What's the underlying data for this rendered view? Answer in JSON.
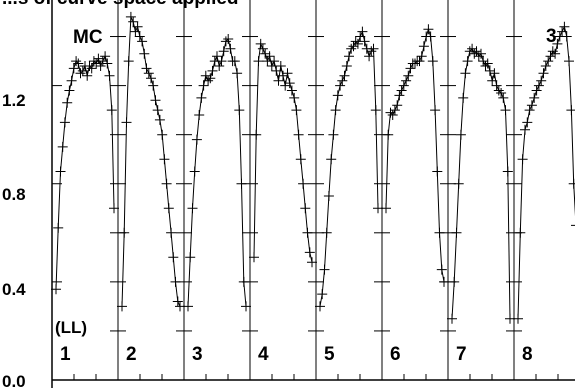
{
  "header_text": "...s of curve space applied",
  "chart_data": {
    "type": "line",
    "panel_label": "MC",
    "corner_label": "3",
    "mode_label": "(LL)",
    "ylim": [
      0.0,
      1.5
    ],
    "y_ticks": [
      {
        "value": 1.2,
        "label": "1.2"
      },
      {
        "value": 0.8,
        "label": "0.8"
      },
      {
        "value": 0.4,
        "label": "0.4"
      },
      {
        "value": 0.0,
        "label": "0.0"
      }
    ],
    "grid": false,
    "marker": "plus",
    "panels": [
      {
        "label": "1",
        "values": [
          0.37,
          0.62,
          0.85,
          0.95,
          1.05,
          1.13,
          1.18,
          1.22,
          1.27,
          1.3,
          1.29,
          1.25,
          1.26,
          1.28,
          1.24,
          1.28,
          1.27,
          1.3,
          1.29,
          1.31,
          1.28,
          1.3,
          1.32,
          1.29,
          1.24,
          1.1,
          0.7
        ]
      },
      {
        "label": "2",
        "values": [
          0.3,
          0.6,
          1.05,
          1.3,
          1.48,
          1.46,
          1.42,
          1.44,
          1.4,
          1.38,
          1.33,
          1.27,
          1.25,
          1.23,
          1.2,
          1.14,
          1.1,
          1.06,
          1.0,
          0.9,
          0.8,
          0.7,
          0.6,
          0.5,
          0.4,
          0.32,
          0.3
        ]
      },
      {
        "label": "3",
        "values": [
          0.3,
          0.5,
          0.7,
          0.85,
          0.98,
          1.08,
          1.15,
          1.2,
          1.24,
          1.22,
          1.23,
          1.26,
          1.3,
          1.32,
          1.28,
          1.3,
          1.34,
          1.38,
          1.39,
          1.35,
          1.3,
          1.3,
          1.25,
          1.1,
          0.8,
          0.4,
          0.3
        ]
      },
      {
        "label": "4",
        "values": [
          0.5,
          1.0,
          1.3,
          1.37,
          1.35,
          1.33,
          1.3,
          1.32,
          1.28,
          1.3,
          1.26,
          1.22,
          1.28,
          1.24,
          1.2,
          1.25,
          1.21,
          1.18,
          1.15,
          1.1,
          1.0,
          0.9,
          0.8,
          0.7,
          0.6,
          0.52,
          0.48
        ]
      },
      {
        "label": "5",
        "values": [
          0.3,
          0.35,
          0.45,
          0.6,
          0.75,
          0.9,
          1.0,
          1.1,
          1.16,
          1.2,
          1.22,
          1.24,
          1.28,
          1.32,
          1.35,
          1.36,
          1.38,
          1.37,
          1.4,
          1.42,
          1.38,
          1.35,
          1.32,
          1.34,
          1.35,
          1.1,
          0.7
        ]
      },
      {
        "label": "6",
        "values": [
          0.7,
          1.0,
          1.09,
          1.08,
          1.1,
          1.12,
          1.16,
          1.18,
          1.2,
          1.22,
          1.24,
          1.27,
          1.29,
          1.29,
          1.3,
          1.3,
          1.32,
          1.36,
          1.4,
          1.43,
          1.4,
          1.3,
          1.1,
          0.85,
          0.6,
          0.45,
          0.4
        ]
      },
      {
        "label": "7",
        "values": [
          0.25,
          0.4,
          0.6,
          0.8,
          1.0,
          1.15,
          1.25,
          1.3,
          1.34,
          1.35,
          1.33,
          1.34,
          1.32,
          1.33,
          1.3,
          1.28,
          1.29,
          1.26,
          1.22,
          1.25,
          1.2,
          1.18,
          1.17,
          1.15,
          1.1,
          0.85,
          0.25
        ]
      },
      {
        "label": "8",
        "values": [
          0.25,
          0.6,
          0.9,
          1.02,
          1.05,
          1.1,
          1.12,
          1.15,
          1.18,
          1.2,
          1.22,
          1.25,
          1.28,
          1.3,
          1.32,
          1.34,
          1.33,
          1.37,
          1.4,
          1.42,
          1.44,
          1.4,
          1.3,
          1.1,
          0.8,
          0.63
        ]
      }
    ]
  }
}
